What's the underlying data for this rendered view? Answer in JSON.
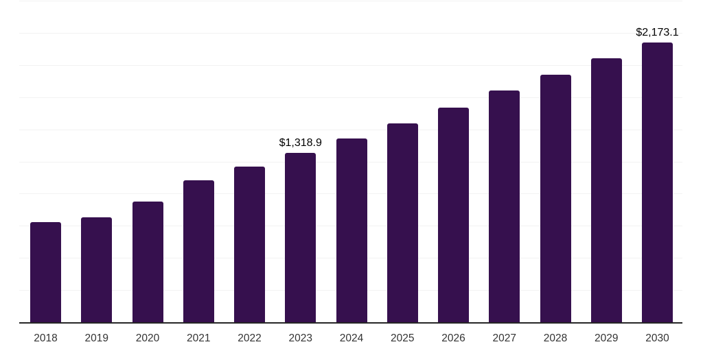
{
  "chart_data": {
    "type": "bar",
    "title": "",
    "xlabel": "",
    "ylabel": "",
    "categories": [
      "2018",
      "2019",
      "2020",
      "2021",
      "2022",
      "2023",
      "2024",
      "2025",
      "2026",
      "2027",
      "2028",
      "2029",
      "2030"
    ],
    "values": [
      778.3,
      818.2,
      938.2,
      1103.4,
      1212.7,
      1318.9,
      1428.6,
      1548.5,
      1668.4,
      1801.7,
      1924.3,
      2052.2,
      2173.1
    ],
    "data_labels": [
      null,
      null,
      null,
      null,
      null,
      "$1,318.9",
      null,
      null,
      null,
      null,
      null,
      null,
      "$2,173.1"
    ],
    "ylim": [
      0,
      2500
    ],
    "gridline_step": 250,
    "grid": "horizontal-only",
    "legend_position": "none",
    "note": "Only the 2023 and 2030 columns display data labels; remaining values estimated from gridline scale",
    "colors": {
      "bar": "#36104E",
      "axis_line": "#262626",
      "gridline": "#F2F2F2",
      "data_label": "#000000",
      "tick_label": "#333333",
      "background": "#FFFFFF"
    }
  }
}
